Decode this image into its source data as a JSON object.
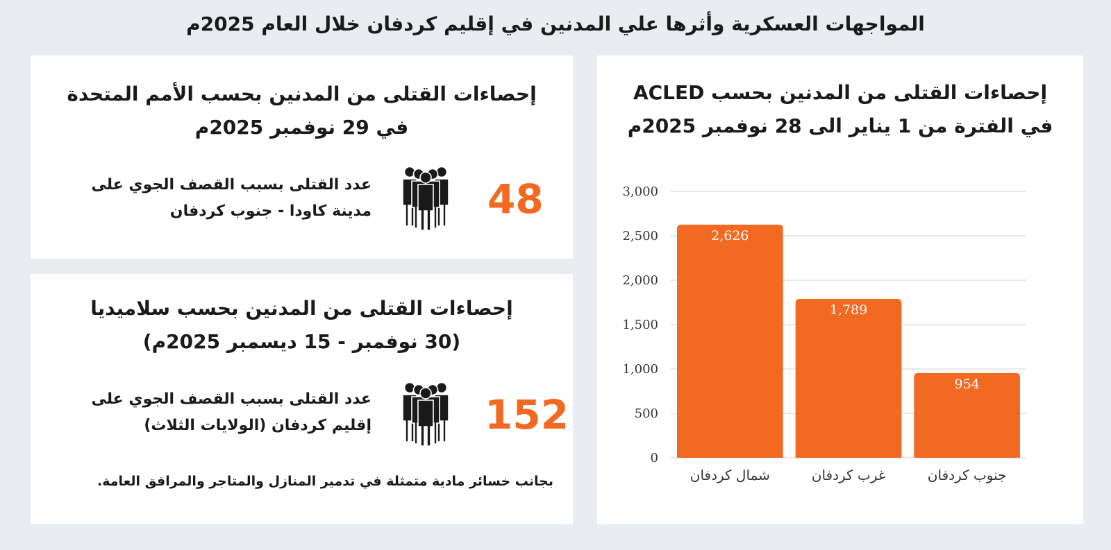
{
  "title": "المواجهات العسكرية وأثرها علي المدنين في إقليم كردفان خلال العام 2025م",
  "colors": {
    "accent": "#f26a21",
    "background": "#e9edf1",
    "panel": "#ffffff",
    "grid": "#cfcfcf"
  },
  "acled": {
    "heading_line1": "إحصاءات القتلى من المدنين بحسب ACLED",
    "heading_line2": "في الفترة من 1 يناير الى 28 نوفمبر 2025م"
  },
  "un": {
    "heading_line1": "إحصاءات القتلى من المدنين بحسب الأمم المتحدة",
    "heading_line2": "في 29 نوفمبر 2025م",
    "stat_line1": "عدد القتلى بسبب القصف الجوي على",
    "stat_line2": "مدينة كاودا - جنوب كردفان",
    "number": "48",
    "icon": "people-group-icon"
  },
  "salamedia": {
    "heading_line1": "إحصاءات القتلى من المدنين بحسب سلاميديا",
    "heading_line2": "(30 نوفمبر - 15 ديسمبر 2025م)",
    "stat_line1": "عدد القتلى بسبب القصف الجوي على",
    "stat_line2": "إقليم كردفان (الولايات الثلاث)",
    "number": "152",
    "icon": "people-group-icon",
    "note": "بجانب خسائر مادية متمثلة في تدمير المنازل والمتاجر والمرافق العامة."
  },
  "chart_data": {
    "type": "bar",
    "categories": [
      "شمال كردفان",
      "غرب كردفان",
      "جنوب كردفان"
    ],
    "values": [
      2626,
      1789,
      954
    ],
    "value_labels": [
      "2,626",
      "1,789",
      "954"
    ],
    "ylim": [
      0,
      3000
    ],
    "yticks": [
      0,
      500,
      1000,
      1500,
      2000,
      2500,
      3000
    ],
    "ytick_labels": [
      "0",
      "500",
      "1,000",
      "1,500",
      "2,000",
      "2,500",
      "3,000"
    ],
    "grid": true,
    "bar_color": "#f26a21"
  }
}
